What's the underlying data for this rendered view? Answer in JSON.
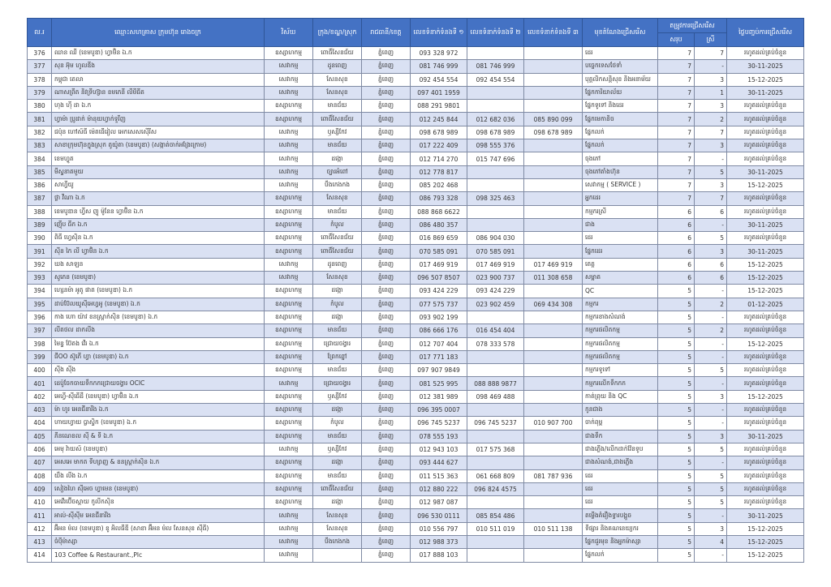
{
  "header": {
    "no": "ល.រ",
    "name": "ឈ្មោះសហគ្រាស ក្រុមហ៊ុន រោងចក្រ",
    "sector": "វិស័យ",
    "district": "ក្រុង/ខណ្ឌ/ស្រុក",
    "province": "រាជធានី/ខេត្ត",
    "phone1": "លេខទំនាក់ទំនងទី ១",
    "phone2": "លេខទំនាក់ទំនងទី ២",
    "phone3": "លេខទំនាក់ទំនងទី ៣",
    "position": "មុខតំណែងជ្រើសរើស",
    "demand": "តម្រូវការជ្រើសរើស",
    "total": "សរុប",
    "female": "ស្រី",
    "deadline": "ថ្ងៃបញ្ចប់ការជ្រើសរើស"
  },
  "colors": {
    "header_bg": "#4472c4",
    "alt_row": "#dae1f3"
  },
  "rows": [
    [
      "376",
      "ឈាន ឈី (ខេមបូឌា) ហ្វាម៊ិន ឯ.ក",
      "ឧស្សាហកម្ម",
      "ពោធិ៍សែនជ័យ",
      "ភ្នំពេញ",
      "093 328 972",
      "",
      "",
      "ដេរ",
      "7",
      "7",
      "រហូតដល់គ្រប់ចំនួន"
    ],
    [
      "377",
      "សុន អ៊ុម ហូលឌីង",
      "សេវាកម្ម",
      "ដូនពេញ",
      "ភ្នំពេញ",
      "081 746 999",
      "081 746 999",
      "",
      "បច្ចេកទេសថែទាំ",
      "7",
      "-",
      "30-11-2025"
    ],
    [
      "378",
      "កម្ពុជា តេលា",
      "សេវាកម្ម",
      "សែនសុខ",
      "ភ្នំពេញ",
      "092 454 554",
      "092 454 554",
      "",
      "បុគ្គលិកសន្តិសុខ និងអនាម័យ",
      "7",
      "3",
      "15-12-2025"
    ],
    [
      "379",
      "ណាសព្រីត និវទ្រីហ្ស៊ាន ខមភេនី លីមីធីត",
      "សេវាកម្ម",
      "សែនសុខ",
      "ភ្នំពេញ",
      "097 401 1959",
      "",
      "",
      "ផ្នែកការិយាល័យ",
      "7",
      "1",
      "30-11-2025"
    ],
    [
      "380",
      "ហុង ហ៊ី ដា ឯ.ក",
      "ឧស្សាហកម្ម",
      "មានជ័យ",
      "ភ្នំពេញ",
      "088 291 9801",
      "",
      "",
      "ផ្នែកទូទៅ និងដេរ",
      "7",
      "3",
      "រហូតដល់គ្រប់ចំនួន"
    ],
    [
      "381",
      "ហ្វាម៉ា ប្រូដាក់ ម៉ានុយហ្វាក់ទួរីញ",
      "ឧស្សាហកម្ម",
      "ពោធិ៍សែនជ័យ",
      "ភ្នំពេញ",
      "012 245 844",
      "012 682 036",
      "085 890 099",
      "ផ្នែកមេកានិច",
      "7",
      "2",
      "រហូតដល់គ្រប់ចំនួន"
    ],
    [
      "382",
      "ជប៉ុន ហៅស៍ធី ម៉េតធើរៀល អេកសេសស៊ើរីស",
      "សេវាកម្ម",
      "ឫស្សីកែវ",
      "ភ្នំពេញ",
      "098 678 989",
      "098 678 989",
      "098 678 989",
      "ផ្នែកលក់",
      "7",
      "7",
      "រហូតដល់គ្រប់ចំនួន"
    ],
    [
      "383",
      "សាខាក្រុមហ៊ុនក្នុងស្រុក តូយ៉ូតា (ខេមបូឌា) (សង្កាត់ចាក់អង្រែក្រោម)",
      "សេវាកម្ម",
      "មានជ័យ",
      "ភ្នំពេញ",
      "017 222 409",
      "098 555 376",
      "",
      "ផ្នែកលក់",
      "7",
      "3",
      "រហូតដល់គ្រប់ចំនួន"
    ],
    [
      "384",
      "ខេមហ្វូត",
      "សេវាកម្ម",
      "ដង្កោ",
      "ភ្នំពេញ",
      "012 714 270",
      "015 747 696",
      "",
      "ចុងភៅ",
      "7",
      "-",
      "រហូតដល់គ្រប់ចំនួន"
    ],
    [
      "385",
      "មីស្ទនាតមួយ",
      "សេវាកម្ម",
      "ច្បារអំពៅ",
      "ភ្នំពេញ",
      "012 778 817",
      "",
      "",
      "ចុងភៅតាំងហ៊ុន",
      "7",
      "5",
      "30-11-2025"
    ],
    [
      "386",
      "សាហ្វីយូ",
      "សេវាកម្ម",
      "បឹងកេងកង",
      "ភ្នំពេញ",
      "085 202 468",
      "",
      "",
      "សេវាកម្ម ( SERVICE )",
      "7",
      "3",
      "15-12-2025"
    ],
    [
      "387",
      "ថ្លា វីណា ឯ.ក",
      "ឧស្សាហកម្ម",
      "សែនសុខ",
      "ភ្នំពេញ",
      "086 793 328",
      "098 325 463",
      "",
      "អ្នកដេរ",
      "7",
      "7",
      "រហូតដល់គ្រប់ចំនួន"
    ],
    [
      "388",
      "ខេមបូឌាន ហ្វីស ញូ ម៉ូនែន ហ្វាម៊ិន ឯ.ក",
      "ឧស្សាហកម្ម",
      "មានជ័យ",
      "ភ្នំពេញ",
      "088 868 6622",
      "",
      "",
      "កម្មករស្រី",
      "6",
      "6",
      "រហូតដល់គ្រប់ចំនួន"
    ],
    [
      "389",
      "ញ៉ើប ធីក ឯ.ក",
      "ឧស្សាហកម្ម",
      "កំបូល",
      "ភ្នំពេញ",
      "086 480 357",
      "",
      "",
      "ជាង",
      "6",
      "-",
      "30-11-2025"
    ],
    [
      "390",
      "ពិធី ហ្វេស៊ិន ឯ.ក",
      "ឧស្សាហកម្ម",
      "ពោធិ៍សែនជ័យ",
      "ភ្នំពេញ",
      "016 869 659",
      "086 904 030",
      "",
      "ដេរ",
      "6",
      "5",
      "រហូតដល់គ្រប់ចំនួន"
    ],
    [
      "391",
      "ស៊ីន កៃ លី ហ្វាម៊ិន ឯ.ក",
      "ឧស្សាហកម្ម",
      "ពោធិ៍សែនជ័យ",
      "ភ្នំពេញ",
      "070 585 091",
      "070 585 091",
      "",
      "ផ្នែកដេរ",
      "6",
      "3",
      "30-11-2025"
    ],
    [
      "392",
      "ឃង សាឡន",
      "សេវាកម្ម",
      "ដូនពេញ",
      "ភ្នំពេញ",
      "017 469 919",
      "017 469 919",
      "017 469 919",
      "តេត្ត",
      "6",
      "6",
      "15-12-2025"
    ],
    [
      "393",
      "សូភេន (ខេមបូឌា)",
      "សេវាកម្ម",
      "សែនសុខ",
      "ភ្នំពេញ",
      "096 507 8507",
      "023 900 737",
      "011 308 658",
      "សម្អាត",
      "6",
      "6",
      "15-12-2025"
    ],
    [
      "394",
      "ហ្សេនម៉ា អូតូ ផាត (ខេមបូឌា) ឯ.ក",
      "ឧស្សាហកម្ម",
      "ដង្កោ",
      "ភ្នំពេញ",
      "093 424 229",
      "093 424 229",
      "",
      "QC",
      "5",
      "-",
      "15-12-2025"
    ],
    [
      "395",
      "ដាប់ប៊ែលយូស៊ីអេហ្វអូ (ខេមបូឌា) ឯ.ក",
      "ឧស្សាហកម្ម",
      "កំបូល",
      "ភ្នំពេញ",
      "077 575 737",
      "023 902 459",
      "069 434 308",
      "កម្មករ",
      "5",
      "2",
      "01-12-2025"
    ],
    [
      "396",
      "កាង ហោ យ៉ាវ ខនស្ត្រាក់ស៊ិន (ខេមបូឌា) ឯ.ក",
      "ឧស្សាហកម្ម",
      "ដង្កោ",
      "ភ្នំពេញ",
      "093 902 199",
      "",
      "",
      "កម្មករខាងសំណង់",
      "5",
      "-",
      "រហូតដល់គ្រប់ចំនួន"
    ],
    [
      "397",
      "លីតថល ដាកលីង",
      "ឧស្សាហកម្ម",
      "មានជ័យ",
      "ភ្នំពេញ",
      "086 666 176",
      "016 454 404",
      "",
      "កម្មករផលិតកម្ម",
      "5",
      "2",
      "រហូតដល់គ្រប់ចំនួន"
    ],
    [
      "398",
      "មៃន្ទ ប៊ែតង វើរ ឯ.ក",
      "ឧស្សាហកម្ម",
      "ជ្រោយចង្វារ",
      "ភ្នំពេញ",
      "012 707 404",
      "078 333 578",
      "",
      "កម្មករផលិតកម្ម",
      "5",
      "-",
      "15-12-2025"
    ],
    [
      "399",
      "ជីOO ស៊ូភើ ហ្វា (ខេមបូឌា) ឯ.ក",
      "ឧស្សាហកម្ម",
      "ព្រែកព្នៅ",
      "ភ្នំពេញ",
      "017 771 183",
      "",
      "",
      "កម្មករផលិតកម្ម",
      "5",
      "-",
      "រហូតដល់គ្រប់ចំនួន"
    ],
    [
      "400",
      "ស៊ីង ស៊ីង",
      "ឧស្សាហកម្ម",
      "មានជ័យ",
      "ភ្នំពេញ",
      "097 907 9849",
      "",
      "",
      "កម្មករទូទៅ",
      "5",
      "5",
      "រហូតដល់គ្រប់ចំនួន"
    ],
    [
      "401",
      "ដេប៉ូចែកចាយទឹកកកជ្រោយចង្វារ OCIC",
      "សេវាកម្ម",
      "ជ្រោយចង្វារ",
      "ភ្នំពេញ",
      "081 525 995",
      "088 888 9877",
      "",
      "កម្មករលើកទឹកកក",
      "5",
      "-",
      "រហូតដល់គ្រប់ចំនួន"
    ],
    [
      "402",
      "អេហ្វី-ស៊ីធើដឺ (ខេមបូឌា) ហ្វាម៊ិន ឯ.ក",
      "ឧស្សាហកម្ម",
      "ឫស្សីកែវ",
      "ភ្នំពេញ",
      "012 381 989",
      "098 469 488",
      "",
      "កាត់ព្រុយ និង QC",
      "5",
      "3",
      "15-12-2025"
    ],
    [
      "403",
      "ម៉ា ហូរ អេនជីនារីង ឯ.ក",
      "ឧស្សាហកម្ម",
      "ដង្កោ",
      "ភ្នំពេញ",
      "096 395 0007",
      "",
      "",
      "កូនជាង",
      "5",
      "-",
      "រហូតដល់គ្រប់ចំនួន"
    ],
    [
      "404",
      "ហាយហ្វាយ ប្លាស្ទិក (ខេមបូឌា) ឯ.ក",
      "ឧស្សាហកម្ម",
      "កំបូល",
      "ភ្នំពេញ",
      "096 745 5237",
      "096 745 5237",
      "010 907 700",
      "ចាក់ពុម្ព",
      "5",
      "-",
      "រហូតដល់គ្រប់ចំនួន"
    ],
    [
      "405",
      "ភីនណេខល ស៊ី & ទី ឯ.ក",
      "ឧស្សាហកម្ម",
      "មានជ័យ",
      "ភ្នំពេញ",
      "078 555 193",
      "",
      "",
      "ជាងទឹក",
      "5",
      "3",
      "30-11-2025"
    ],
    [
      "406",
      "អេមុ វ៉ាយស៍ (ខេមបូឌា)",
      "សេវាកម្ម",
      "ឫស្សីកែវ",
      "ភ្នំពេញ",
      "012 943 103",
      "017 575 368",
      "",
      "ជាងភ្លើង/លើកដាក់វ៉ែនទូប",
      "5",
      "5",
      "រហូតដល់គ្រប់ចំនួន"
    ],
    [
      "407",
      "អេសអេ មាកត ទីហ្សាញ & ខនស្ត្រាក់ស៊ិន ឯ.ក",
      "ឧស្សាហកម្ម",
      "ដង្កោ",
      "ភ្នំពេញ",
      "093 444 627",
      "",
      "",
      "ជាងសំណង់,ជាងភ្លើង",
      "5",
      "-",
      "រហូតដល់គ្រប់ចំនួន"
    ],
    [
      "408",
      "យឹង លីង ឯ.ក",
      "ឧស្សាហកម្ម",
      "មានជ័យ",
      "ភ្នំពេញ",
      "011 515 363",
      "061 668 809",
      "081 787 936",
      "ដេរ",
      "5",
      "5",
      "រហូតដល់គ្រប់ចំនួន"
    ],
    [
      "409",
      "សៀងហៃ ស៊ីអេច ហ្វាមេន (ខេមបូឌា)",
      "ឧស្សាហកម្ម",
      "ពោធិ៍សែនជ័យ",
      "ភ្នំពេញ",
      "012 880 222",
      "096 824 4575",
      "",
      "ដេរ",
      "5",
      "5",
      "រហូតដល់គ្រប់ចំនួន"
    ],
    [
      "410",
      "អេវើរប៊ើចស្តាយ កូលីកស៊ិន",
      "ឧស្សាហកម្ម",
      "ដង្កោ",
      "ភ្នំពេញ",
      "012 987 087",
      "",
      "",
      "ដេរ",
      "5",
      "5",
      "រហូតដល់គ្រប់ចំនួន"
    ],
    [
      "411",
      "អាល់-ស៊ីស៊ីម អេនជីនារីង",
      "សេវាកម្ម",
      "សែនសុខ",
      "ភ្នំពេញ",
      "096 530 0111",
      "085 854 486",
      "",
      "តម្លើងគំរឿងទ្វារបង្អួច",
      "5",
      "-",
      "30-11-2025"
    ],
    [
      "412",
      "អ៊ីអន ម៉ល (ខេមបូឌា) ខូ អិលធីឌី (សាខា អ៊ីអន ម៉ល សែនសុខ ស៊ីធី)",
      "សេវាកម្ម",
      "សែនសុខ",
      "ភ្នំពេញ",
      "010 556 797",
      "010 511 019",
      "010 511 138",
      "ទីផ្សារ និងគណនេយ្យករ",
      "5",
      "3",
      "15-12-2025"
    ],
    [
      "413",
      "ចំប៉ីម៉ាស្សា",
      "សេវាកម្ម",
      "បឹងកេងកង",
      "ភ្នំពេញ",
      "012 988 373",
      "",
      "",
      "ផ្នែកជួរមុខ និងអ្នកម៉ាស្សា",
      "5",
      "4",
      "15-12-2025"
    ],
    [
      "414",
      "103 Coffee & Restaurant.,Plc",
      "សេវាកម្ម",
      "",
      "ភ្នំពេញ",
      "017 888 103",
      "",
      "",
      "ផ្នែកលក់",
      "5",
      "-",
      "15-12-2025"
    ]
  ]
}
